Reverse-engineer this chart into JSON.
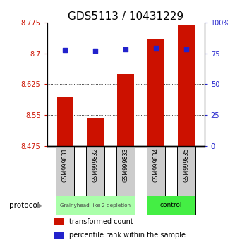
{
  "title": "GDS5113 / 10431229",
  "categories": [
    "GSM999831",
    "GSM999832",
    "GSM999833",
    "GSM999834",
    "GSM999835"
  ],
  "bar_values": [
    8.595,
    8.543,
    8.65,
    8.735,
    8.77
  ],
  "percentile_values": [
    77.5,
    77.0,
    78.5,
    79.5,
    78.5
  ],
  "bar_bottom": 8.475,
  "ylim_left": [
    8.475,
    8.775
  ],
  "ylim_right": [
    0,
    100
  ],
  "yticks_left": [
    8.475,
    8.55,
    8.625,
    8.7,
    8.775
  ],
  "ytick_labels_left": [
    "8.475",
    "8.55",
    "8.625",
    "8.7",
    "8.775"
  ],
  "yticks_right": [
    0,
    25,
    50,
    75,
    100
  ],
  "ytick_labels_right": [
    "0",
    "25",
    "50",
    "75",
    "100%"
  ],
  "bar_color": "#cc1100",
  "dot_color": "#2222cc",
  "group1_samples": [
    0,
    1,
    2
  ],
  "group2_samples": [
    3,
    4
  ],
  "group1_label": "Grainyhead-like 2 depletion",
  "group2_label": "control",
  "group1_color": "#aaffaa",
  "group2_color": "#44ee44",
  "protocol_label": "protocol",
  "legend1_label": "transformed count",
  "legend2_label": "percentile rank within the sample",
  "title_fontsize": 11,
  "tick_fontsize": 7,
  "legend_fontsize": 7,
  "bar_width": 0.55,
  "background_color": "#ffffff",
  "sample_box_color": "#cccccc",
  "sample_border_color": "#000000"
}
